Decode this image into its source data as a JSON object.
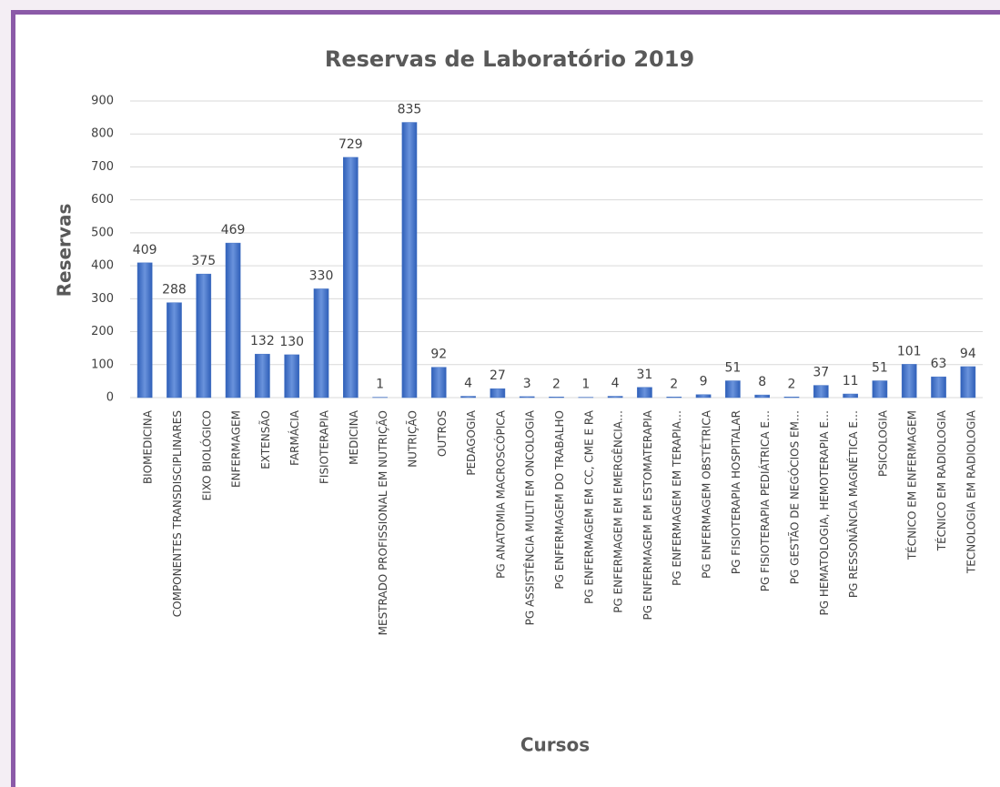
{
  "chart_data": {
    "type": "bar",
    "title": "Reservas de Laboratório 2019",
    "x_label": "Cursos",
    "y_label": "Reservas",
    "categories": [
      "BIOMEDICINA",
      "COMPONENTES TRANSDISCIPLINARES",
      "EIXO BIOLÓGICO",
      "ENFERMAGEM",
      "EXTENSÃO",
      "FARMÁCIA",
      "FISIOTERAPIA",
      "MEDICINA",
      "MESTRADO PROFISSIONAL EM NUTRIÇÃO",
      "NUTRIÇÃO",
      "OUTROS",
      "PEDAGOGIA",
      "PG ANATOMIA MACROSCÓPICA",
      "PG ASSISTÊNCIA MULTI EM ONCOLOGIA",
      "PG ENFERMAGEM DO TRABALHO",
      "PG ENFERMAGEM EM CC, CME E RA",
      "PG ENFERMAGEM EM EMERGÊNCIA…",
      "PG ENFERMAGEM EM ESTOMATERAPIA",
      "PG ENFERMAGEM EM TERAPIA…",
      "PG ENFERMAGEM OBSTÉTRICA",
      "PG FISIOTERAPIA HOSPITALAR",
      "PG FISIOTERAPIA PEDIÁTRICA E…",
      "PG GESTÃO DE NEGÓCIOS EM…",
      "PG HEMATOLOGIA, HEMOTERAPIA E…",
      "PG RESSONÂNCIA MAGNÉTICA E…",
      "PSICOLOGIA",
      "TÉCNICO EM ENFERMAGEM",
      "TÉCNICO EM RADIOLOGIA",
      "TECNOLOGIA EM RADIOLOGIA"
    ],
    "values": [
      409,
      288,
      375,
      469,
      132,
      130,
      330,
      729,
      1,
      835,
      92,
      4,
      27,
      3,
      2,
      1,
      4,
      31,
      2,
      9,
      51,
      8,
      2,
      37,
      11,
      51,
      101,
      63,
      94
    ],
    "color": "#4472c4",
    "ylim": [
      0,
      900
    ],
    "yticks": [
      0,
      100,
      200,
      300,
      400,
      500,
      600,
      700,
      800,
      900
    ],
    "grid": true
  }
}
